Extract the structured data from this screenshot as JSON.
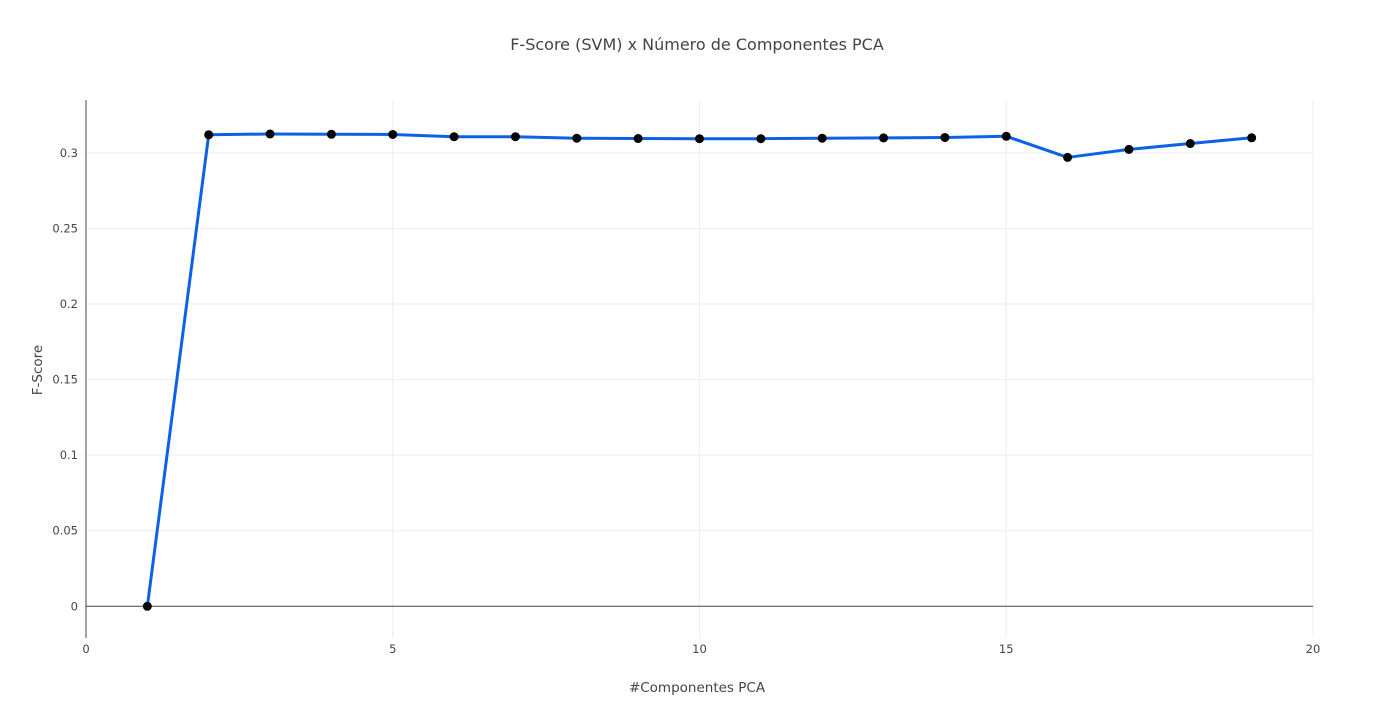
{
  "chart_data": {
    "type": "line",
    "title": "F-Score (SVM) x Número de Componentes PCA",
    "xlabel": "#Componentes PCA",
    "ylabel": "F-Score",
    "xlim": [
      0,
      20
    ],
    "ylim": [
      -0.021,
      0.335
    ],
    "xticks": [
      0,
      5,
      10,
      15,
      20
    ],
    "xtick_labels": [
      "0",
      "5",
      "10",
      "15",
      "20"
    ],
    "yticks": [
      0,
      0.05,
      0.1,
      0.15,
      0.2,
      0.25,
      0.3
    ],
    "ytick_labels": [
      "0",
      "0.05",
      "0.1",
      "0.15",
      "0.2",
      "0.25",
      "0.3"
    ],
    "grid": true,
    "series": [
      {
        "x": [
          1,
          2,
          3,
          4,
          5,
          6,
          7,
          8,
          9,
          10,
          11,
          12,
          13,
          14,
          15,
          16,
          17,
          18,
          19
        ],
        "y": [
          0,
          0.312,
          0.3125,
          0.3123,
          0.3122,
          0.3107,
          0.3107,
          0.3097,
          0.3095,
          0.3094,
          0.3094,
          0.3097,
          0.3099,
          0.3102,
          0.311,
          0.297,
          0.3023,
          0.3062,
          0.31
        ],
        "mode": "lines+markers",
        "line_color": "#0b62e6",
        "marker_color": "#000000"
      }
    ]
  }
}
